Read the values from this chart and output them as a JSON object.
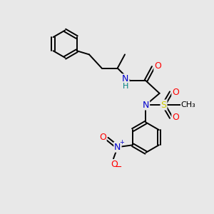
{
  "background_color": "#e8e8e8",
  "bond_color": "#000000",
  "atom_colors": {
    "N": "#0000cc",
    "O": "#ff0000",
    "S": "#cccc00",
    "H": "#008080",
    "C": "#000000"
  },
  "figsize": [
    3.0,
    3.0
  ],
  "dpi": 100,
  "bond_lw": 1.4,
  "font_size": 9
}
